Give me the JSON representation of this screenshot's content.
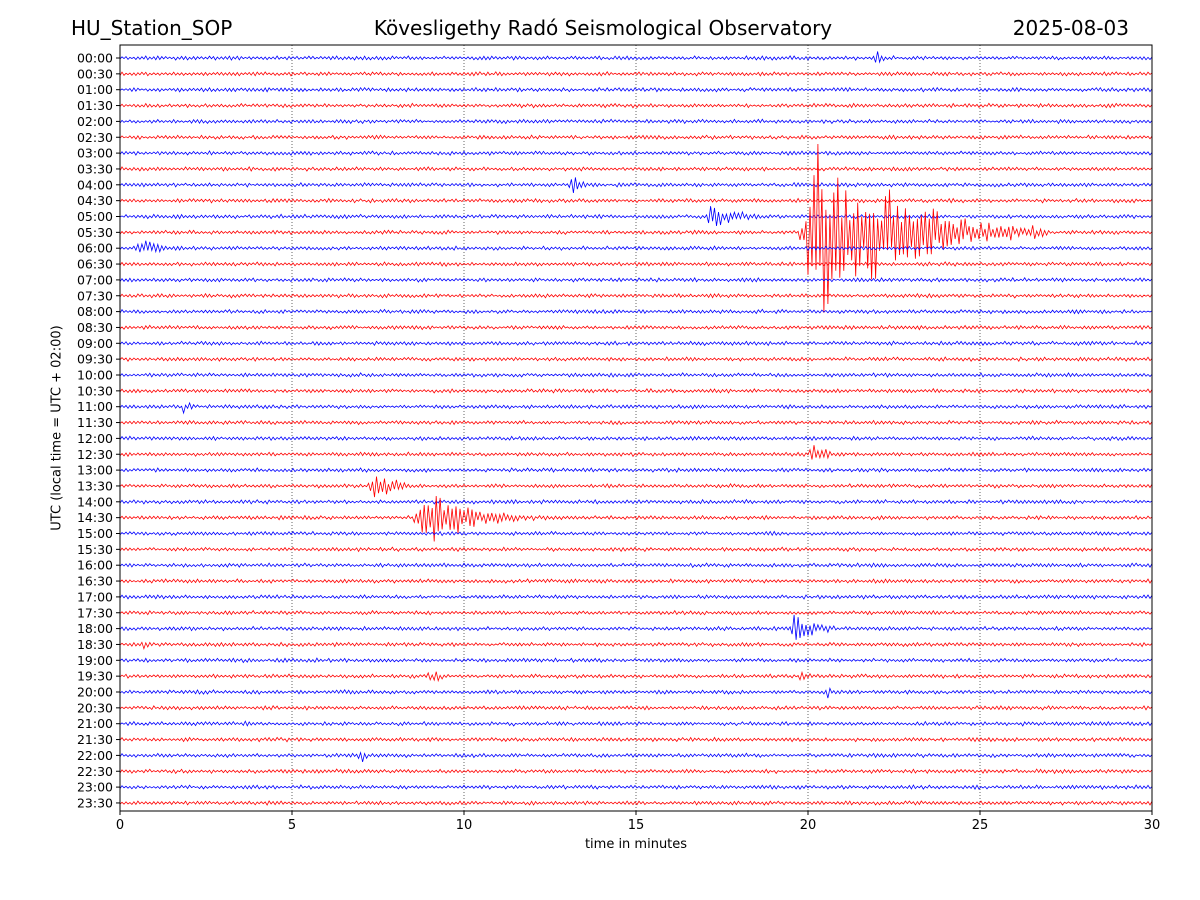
{
  "header": {
    "station": "HU_Station_SOP",
    "observatory": "Kövesligethy Radó Seismological Observatory",
    "date": "2025-08-03"
  },
  "chart_data": {
    "type": "line",
    "title": "Kövesligethy Radó Seismological Observatory",
    "xlabel": "time in minutes",
    "ylabel": "UTC (local time = UTC + 02:00)",
    "xlim": [
      0,
      30
    ],
    "x_ticks": [
      "0",
      "5",
      "10",
      "15",
      "20",
      "25",
      "30"
    ],
    "grid": "vertical dotted at 5, 10, 15, 20, 25 min",
    "row_colors": [
      "#0000ff",
      "#ff0000"
    ],
    "rows": [
      "00:00",
      "00:30",
      "01:00",
      "01:30",
      "02:00",
      "02:30",
      "03:00",
      "03:30",
      "04:00",
      "04:30",
      "05:00",
      "05:30",
      "06:00",
      "06:30",
      "07:00",
      "07:30",
      "08:00",
      "08:30",
      "09:00",
      "09:30",
      "10:00",
      "10:30",
      "11:00",
      "11:30",
      "12:00",
      "12:30",
      "13:00",
      "13:30",
      "14:00",
      "14:30",
      "15:00",
      "15:30",
      "16:00",
      "16:30",
      "17:00",
      "17:30",
      "18:00",
      "18:30",
      "19:00",
      "19:30",
      "20:00",
      "20:30",
      "21:00",
      "21:30",
      "22:00",
      "22:30",
      "23:00",
      "23:30"
    ],
    "events": [
      {
        "row": "00:00",
        "start_min": 21.9,
        "end_min": 22.5,
        "amplitude": 2.2
      },
      {
        "row": "04:00",
        "start_min": 13.0,
        "end_min": 14.5,
        "amplitude": 2.0
      },
      {
        "row": "05:00",
        "start_min": 17.0,
        "end_min": 19.3,
        "amplitude": 3.0
      },
      {
        "row": "05:30",
        "start_min": 19.7,
        "end_min": 27.0,
        "amplitude": 17.0
      },
      {
        "row": "06:00",
        "start_min": 0.4,
        "end_min": 2.5,
        "amplitude": 2.2
      },
      {
        "row": "11:00",
        "start_min": 1.8,
        "end_min": 2.5,
        "amplitude": 1.7
      },
      {
        "row": "12:30",
        "start_min": 20.0,
        "end_min": 21.3,
        "amplitude": 2.5
      },
      {
        "row": "13:30",
        "start_min": 7.2,
        "end_min": 9.0,
        "amplitude": 3.2
      },
      {
        "row": "14:30",
        "start_min": 8.5,
        "end_min": 12.5,
        "amplitude": 6.0
      },
      {
        "row": "18:00",
        "start_min": 19.4,
        "end_min": 21.5,
        "amplitude": 3.0
      },
      {
        "row": "18:30",
        "start_min": 0.6,
        "end_min": 1.2,
        "amplitude": 1.6
      },
      {
        "row": "19:30",
        "start_min": 8.9,
        "end_min": 9.8,
        "amplitude": 2.0
      },
      {
        "row": "19:30",
        "start_min": 19.7,
        "end_min": 20.4,
        "amplitude": 1.9
      },
      {
        "row": "20:00",
        "start_min": 20.5,
        "end_min": 21.0,
        "amplitude": 1.8
      },
      {
        "row": "21:00",
        "start_min": 3.6,
        "end_min": 3.9,
        "amplitude": 1.8
      },
      {
        "row": "22:00",
        "start_min": 6.9,
        "end_min": 7.5,
        "amplitude": 2.2
      }
    ]
  }
}
